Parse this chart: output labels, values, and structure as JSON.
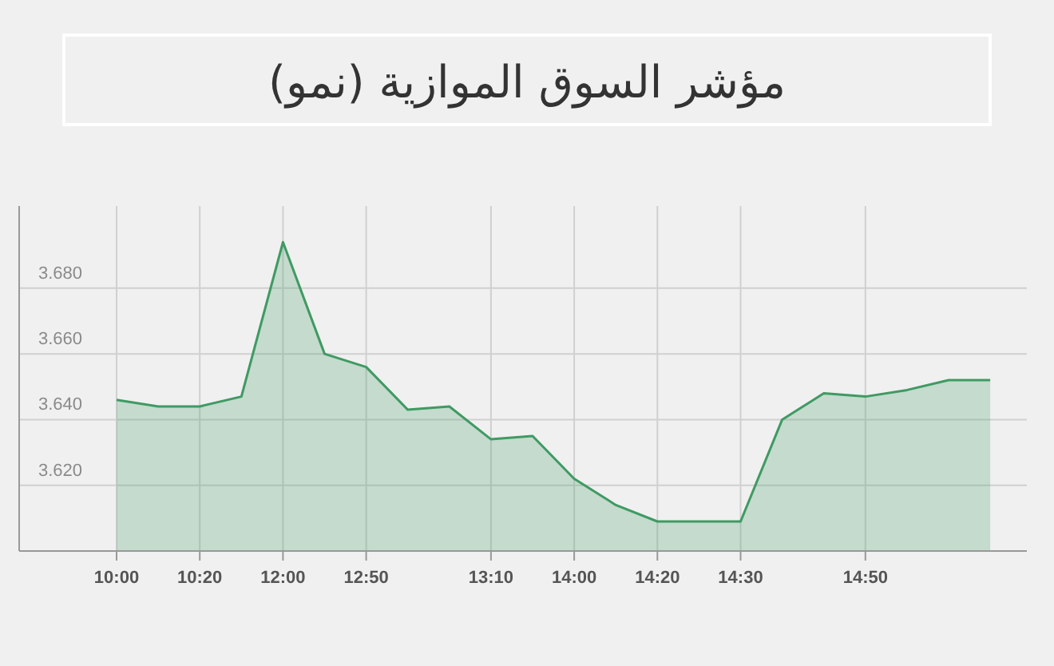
{
  "chart_data": {
    "type": "area",
    "title": "مؤشر السوق الموازية (نمو)",
    "categories": [
      "10:00",
      null,
      "10:20",
      null,
      "12:00",
      null,
      "12:50",
      null,
      null,
      "13:10",
      null,
      "14:00",
      null,
      "14:20",
      null,
      "14:30",
      null,
      null,
      "14:50",
      null,
      null,
      null
    ],
    "values": [
      3.646,
      3.644,
      3.644,
      3.647,
      3.694,
      3.66,
      3.656,
      3.643,
      3.644,
      3.634,
      3.635,
      3.622,
      3.614,
      3.609,
      3.609,
      3.609,
      3.64,
      3.648,
      3.647,
      3.649,
      3.652,
      3.652
    ],
    "color": "#3f9a63",
    "ylim": [
      3.6,
      3.705
    ],
    "yticks": [
      {
        "value": 3.62,
        "label": "3.620"
      },
      {
        "value": 3.64,
        "label": "3.640"
      },
      {
        "value": 3.66,
        "label": "3.660"
      },
      {
        "value": 3.68,
        "label": "3.680"
      }
    ],
    "grid": true
  }
}
